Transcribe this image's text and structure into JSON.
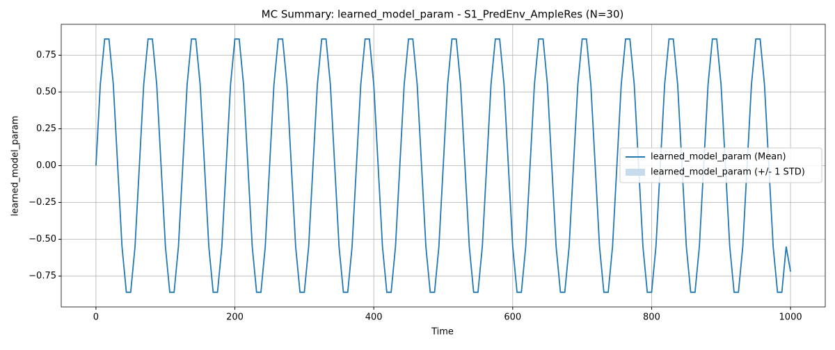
{
  "chart_data": {
    "type": "line",
    "title": "MC Summary: learned_model_param - S1_PredEnv_AmpleRes (N=30)",
    "x_label": "Time",
    "y_label": "learned_model_param",
    "x": [
      0,
      6.25,
      12.5,
      18.75,
      25,
      31.25,
      37.5,
      43.75,
      50,
      56.25,
      62.5,
      68.75,
      75,
      81.25,
      87.5,
      93.75,
      100,
      106.25,
      112.5,
      118.75,
      125,
      131.25,
      137.5,
      143.75,
      150,
      156.25,
      162.5,
      168.75,
      175,
      181.25,
      187.5,
      193.75,
      200,
      206.25,
      212.5,
      218.75,
      225,
      231.25,
      237.5,
      243.75,
      250,
      256.25,
      262.5,
      268.75,
      275,
      281.25,
      287.5,
      293.75,
      300,
      306.25,
      312.5,
      318.75,
      325,
      331.25,
      337.5,
      343.75,
      350,
      356.25,
      362.5,
      368.75,
      375,
      381.25,
      387.5,
      393.75,
      400,
      406.25,
      412.5,
      418.75,
      425,
      431.25,
      437.5,
      443.75,
      450,
      456.25,
      462.5,
      468.75,
      475,
      481.25,
      487.5,
      493.75,
      500,
      506.25,
      512.5,
      518.75,
      525,
      531.25,
      537.5,
      543.75,
      550,
      556.25,
      562.5,
      568.75,
      575,
      581.25,
      587.5,
      593.75,
      600,
      606.25,
      612.5,
      618.75,
      625,
      631.25,
      637.5,
      643.75,
      650,
      656.25,
      662.5,
      668.75,
      675,
      681.25,
      687.5,
      693.75,
      700,
      706.25,
      712.5,
      718.75,
      725,
      731.25,
      737.5,
      743.75,
      750,
      756.25,
      762.5,
      768.75,
      775,
      781.25,
      787.5,
      793.75,
      800,
      806.25,
      812.5,
      818.75,
      825,
      831.25,
      837.5,
      843.75,
      850,
      856.25,
      862.5,
      868.75,
      875,
      881.25,
      887.5,
      893.75,
      900,
      906.25,
      912.5,
      918.75,
      925,
      931.25,
      937.5,
      943.75,
      950,
      956.25,
      962.5,
      968.75,
      975,
      981.25,
      987.5,
      993.75,
      1000
    ],
    "series": [
      {
        "name": "learned_model_param (Mean)",
        "color": "#1f77b4",
        "values": [
          0,
          0.55,
          0.86,
          0.86,
          0.55,
          0,
          -0.55,
          -0.86,
          -0.86,
          -0.55,
          0,
          0.55,
          0.86,
          0.86,
          0.55,
          0,
          -0.55,
          -0.86,
          -0.86,
          -0.55,
          0,
          0.55,
          0.86,
          0.86,
          0.55,
          0,
          -0.55,
          -0.86,
          -0.86,
          -0.55,
          0,
          0.55,
          0.86,
          0.86,
          0.55,
          0,
          -0.55,
          -0.86,
          -0.86,
          -0.55,
          0,
          0.55,
          0.86,
          0.86,
          0.55,
          0,
          -0.55,
          -0.86,
          -0.86,
          -0.55,
          0,
          0.55,
          0.86,
          0.86,
          0.55,
          0,
          -0.55,
          -0.86,
          -0.86,
          -0.55,
          0,
          0.55,
          0.86,
          0.86,
          0.55,
          0,
          -0.55,
          -0.86,
          -0.86,
          -0.55,
          0,
          0.55,
          0.86,
          0.86,
          0.55,
          0,
          -0.55,
          -0.86,
          -0.86,
          -0.55,
          0,
          0.55,
          0.86,
          0.86,
          0.55,
          0,
          -0.55,
          -0.86,
          -0.86,
          -0.55,
          0,
          0.55,
          0.86,
          0.86,
          0.55,
          0,
          -0.55,
          -0.86,
          -0.86,
          -0.55,
          0,
          0.55,
          0.86,
          0.86,
          0.55,
          0,
          -0.55,
          -0.86,
          -0.86,
          -0.55,
          0,
          0.55,
          0.86,
          0.86,
          0.55,
          0,
          -0.55,
          -0.86,
          -0.86,
          -0.55,
          0,
          0.55,
          0.86,
          0.86,
          0.55,
          0,
          -0.55,
          -0.86,
          -0.86,
          -0.55,
          0,
          0.55,
          0.86,
          0.86,
          0.55,
          0,
          -0.55,
          -0.86,
          -0.86,
          -0.55,
          0,
          0.55,
          0.86,
          0.86,
          0.55,
          0,
          -0.55,
          -0.86,
          -0.86,
          -0.55,
          0,
          0.55,
          0.86,
          0.86,
          0.55,
          0,
          -0.55,
          -0.86,
          -0.86,
          -0.55,
          -0.72
        ]
      }
    ],
    "band": {
      "name": "learned_model_param (+/- 1 STD)",
      "color": "#c6dcec"
    },
    "xlim": [
      -50,
      1050
    ],
    "xticks": [
      0,
      200,
      400,
      600,
      800,
      1000
    ],
    "ylim": [
      -0.96,
      0.96
    ],
    "yticks": [
      {
        "value": -0.75,
        "label": "−0.75"
      },
      {
        "value": -0.5,
        "label": "−0.50"
      },
      {
        "value": -0.25,
        "label": "−0.25"
      },
      {
        "value": 0,
        "label": "0.00"
      },
      0.25,
      {
        "value": 0.5,
        "label": "0.50"
      },
      0.75
    ],
    "grid": true,
    "legend": "right"
  }
}
